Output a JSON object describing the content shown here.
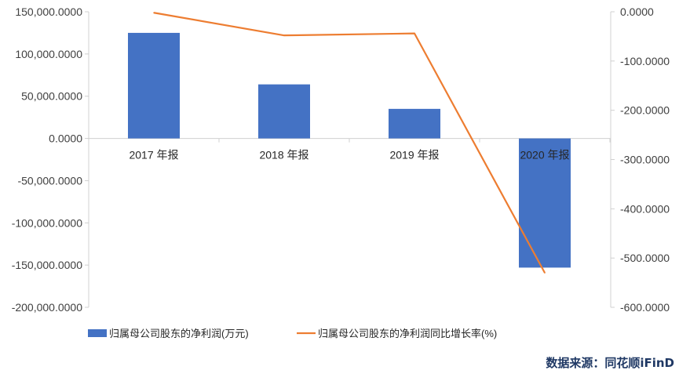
{
  "chart_data": {
    "type": "bar",
    "categories": [
      "2017 年报",
      "2018 年报",
      "2019 年报",
      "2020 年报"
    ],
    "series": [
      {
        "name": "归属母公司股东的净利润(万元)",
        "type": "bar",
        "axis": "left",
        "color": "#4472c4",
        "values": [
          125000,
          64000,
          35000,
          -153000
        ]
      },
      {
        "name": "归属母公司股东的净利润同比增长率(%)",
        "type": "line",
        "axis": "right",
        "color": "#ed7d31",
        "values": [
          -2,
          -48,
          -44,
          -530
        ]
      }
    ],
    "y_left": {
      "ylim": [
        -200000,
        150000
      ],
      "ticks": [
        150000,
        100000,
        50000,
        0,
        -50000,
        -100000,
        -150000,
        -200000
      ],
      "tick_labels": [
        "150,000.0000",
        "100,000.0000",
        "50,000.0000",
        "0.0000",
        "-50,000.0000",
        "-100,000.0000",
        "-150,000.0000",
        "-200,000.0000"
      ]
    },
    "y_right": {
      "ylim": [
        -600,
        0
      ],
      "ticks": [
        0,
        -100,
        -200,
        -300,
        -400,
        -500,
        -600
      ],
      "tick_labels": [
        "0.0000",
        "-100.0000",
        "-200.0000",
        "-300.0000",
        "-400.0000",
        "-500.0000",
        "-600.0000"
      ]
    },
    "grid": false,
    "legend_position": "bottom-left"
  },
  "source_text": "数据来源：同花顺iFinD"
}
